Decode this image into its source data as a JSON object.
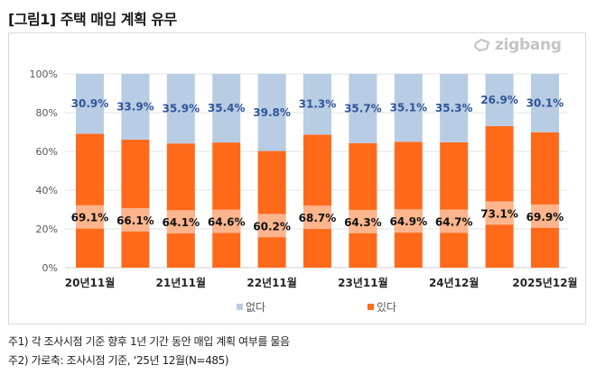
{
  "title": "[그림1] 주택 매입 계획 유무",
  "logo_text": "zigbang",
  "colors": {
    "no": "#b8cce4",
    "yes": "#ff6a1a",
    "yes_label_bg": "#fcb58c",
    "no_label": "#2f5597",
    "yes_label": "#111111"
  },
  "chart_data": {
    "type": "bar",
    "stacked": true,
    "title": "[그림1] 주택 매입 계획 유무",
    "categories": [
      "20년11월",
      "",
      "21년11월",
      "",
      "22년11월",
      "",
      "23년11월",
      "",
      "24년12월",
      "",
      "2025년12월"
    ],
    "series": [
      {
        "name": "있다",
        "values": [
          69.1,
          66.1,
          64.1,
          64.6,
          60.2,
          68.7,
          64.3,
          64.9,
          64.7,
          73.1,
          69.9
        ],
        "labels": [
          "69.1%",
          "66.1%",
          "64.1%",
          "64.6%",
          "60.2%",
          "68.7%",
          "64.3%",
          "64.9%",
          "64.7%",
          "73.1%",
          "69.9%"
        ]
      },
      {
        "name": "없다",
        "values": [
          30.9,
          33.9,
          35.9,
          35.4,
          39.8,
          31.3,
          35.7,
          35.1,
          35.3,
          26.9,
          30.1
        ],
        "labels": [
          "30.9%",
          "33.9%",
          "35.9%",
          "35.4%",
          "39.8%",
          "31.3%",
          "35.7%",
          "35.1%",
          "35.3%",
          "26.9%",
          "30.1%"
        ]
      }
    ],
    "yticks": [
      "0%",
      "20%",
      "40%",
      "60%",
      "80%",
      "100%"
    ],
    "ylim": [
      0,
      100
    ],
    "grid": true,
    "legend": {
      "position": "bottom",
      "entries": [
        "없다",
        "있다"
      ]
    }
  },
  "notes": [
    "주1) 각 조사시점 기준 향후 1년 기간 동안 매입 계획 여부를 물음",
    "주2) 가로축: 조사시점 기준, ‘25년 12월(N=485)"
  ]
}
